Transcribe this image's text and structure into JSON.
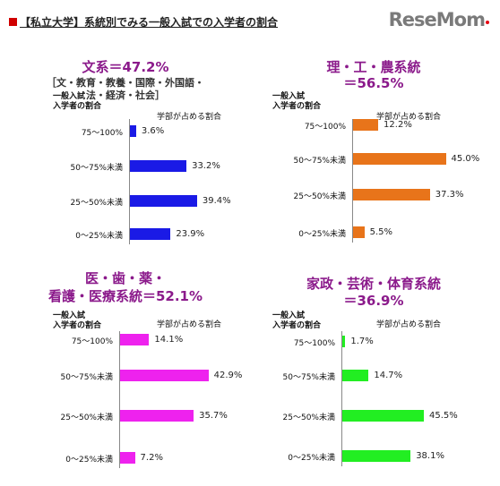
{
  "header": {
    "title": "【私立大学】系統別でみる一般入試での入学者の割合"
  },
  "logo": {
    "text": "ReseMom"
  },
  "colors": {
    "panel1": "#1a1ae6",
    "panel2": "#e8741a",
    "panel3": "#ee22ee",
    "panel4": "#22ee22",
    "title": "#8b1a8b"
  },
  "chart_data": [
    {
      "type": "bar",
      "title": "文系＝47.2%",
      "subtitle_lines": [
        "［文・教育・教養・国際・外国語・",
        "法・経済・社会］"
      ],
      "ylabel_lines": [
        "一般入試",
        "入学者の割合"
      ],
      "xlabel": "学部が占める割合",
      "categories": [
        "75〜100%",
        "50〜75%未満",
        "25〜50%未満",
        "0〜25%未満"
      ],
      "values": [
        3.6,
        33.2,
        39.4,
        23.9
      ],
      "value_labels": [
        "3.6%",
        "33.2%",
        "39.4%",
        "23.9%"
      ]
    },
    {
      "type": "bar",
      "title_lines": [
        "理・工・農系統",
        "＝56.5%"
      ],
      "ylabel_lines": [
        "一般入試",
        "入学者の割合"
      ],
      "xlabel": "学部が占める割合",
      "categories": [
        "75〜100%",
        "50〜75%未満",
        "25〜50%未満",
        "0〜25%未満"
      ],
      "values": [
        12.2,
        45.0,
        37.3,
        5.5
      ],
      "value_labels": [
        "12.2%",
        "45.0%",
        "37.3%",
        "5.5%"
      ]
    },
    {
      "type": "bar",
      "title_lines": [
        "医・歯・薬・",
        "看護・医療系統＝52.1%"
      ],
      "ylabel_lines": [
        "一般入試",
        "入学者の割合"
      ],
      "xlabel": "学部が占める割合",
      "categories": [
        "75〜100%",
        "50〜75%未満",
        "25〜50%未満",
        "0〜25%未満"
      ],
      "values": [
        14.1,
        42.9,
        35.7,
        7.2
      ],
      "value_labels": [
        "14.1%",
        "42.9%",
        "35.7%",
        "7.2%"
      ]
    },
    {
      "type": "bar",
      "title_lines": [
        "家政・芸術・体育系統",
        "＝36.9%"
      ],
      "ylabel_lines": [
        "一般入試",
        "入学者の割合"
      ],
      "xlabel": "学部が占める割合",
      "categories": [
        "75〜100%",
        "50〜75%未満",
        "25〜50%未満",
        "0〜25%未満"
      ],
      "values": [
        1.7,
        14.7,
        45.5,
        38.1
      ],
      "value_labels": [
        "1.7%",
        "14.7%",
        "45.5%",
        "38.1%"
      ]
    }
  ]
}
